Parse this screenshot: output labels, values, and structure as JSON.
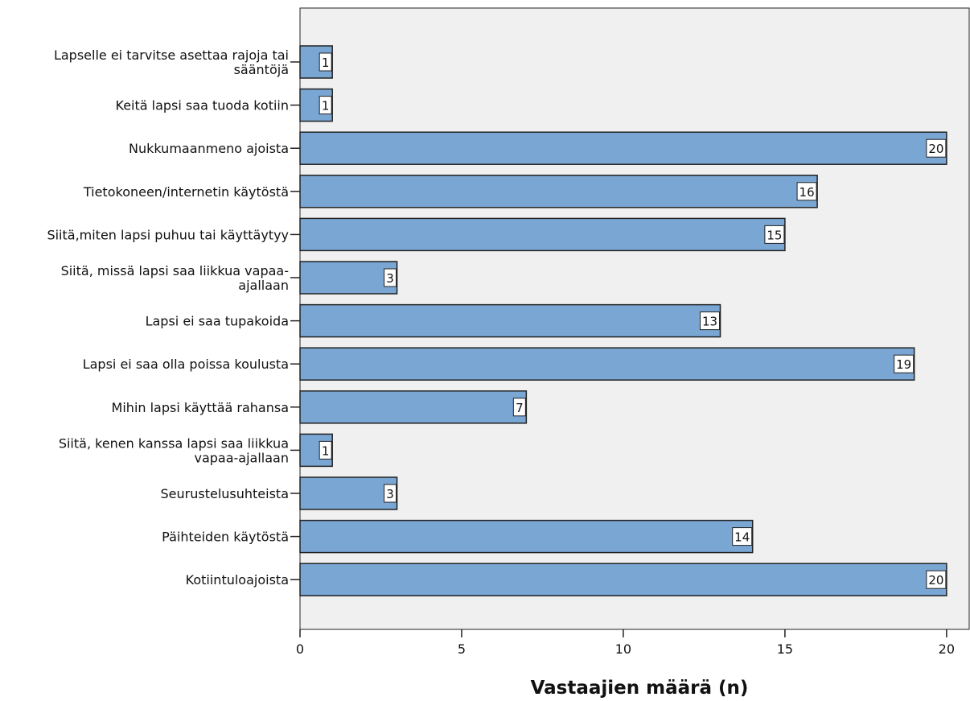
{
  "chart_data": {
    "type": "bar",
    "orientation": "horizontal",
    "categories": [
      "Lapselle ei tarvitse asettaa rajoja tai sääntöjä",
      "Keitä lapsi saa tuoda kotiin",
      "Nukkumaanmeno ajoista",
      "Tietokoneen/internetin käytöstä",
      "Siitä,miten lapsi puhuu tai käyttäytyy",
      "Siitä, missä lapsi saa liikkua vapaa-ajallaan",
      "Lapsi ei saa tupakoida",
      "Lapsi ei saa olla poissa koulusta",
      "Mihin lapsi käyttää rahansa",
      "Siitä, kenen kanssa lapsi saa liikkua vapaa-ajallaan",
      "Seurustelusuhteista",
      "Päihteiden käytöstä",
      "Kotiintuloajoista"
    ],
    "category_label_lines": [
      [
        "Lapselle ei tarvitse asettaa rajoja tai",
        "sääntöjä"
      ],
      [
        "Keitä lapsi saa tuoda kotiin"
      ],
      [
        "Nukkumaanmeno ajoista"
      ],
      [
        "Tietokoneen/internetin käytöstä"
      ],
      [
        "Siitä,miten lapsi puhuu tai käyttäytyy"
      ],
      [
        "Siitä, missä lapsi saa liikkua vapaa-",
        "ajallaan"
      ],
      [
        "Lapsi ei saa tupakoida"
      ],
      [
        "Lapsi ei saa olla poissa koulusta"
      ],
      [
        "Mihin lapsi käyttää rahansa"
      ],
      [
        "Siitä, kenen kanssa lapsi saa liikkua",
        "vapaa-ajallaan"
      ],
      [
        "Seurustelusuhteista"
      ],
      [
        "Päihteiden käytöstä"
      ],
      [
        "Kotiintuloajoista"
      ]
    ],
    "values": [
      1,
      1,
      20,
      16,
      15,
      3,
      13,
      19,
      7,
      1,
      3,
      14,
      20
    ],
    "data_labels": [
      "1",
      "1",
      "20",
      "16",
      "15",
      "3",
      "13",
      "19",
      "7",
      "1",
      "3",
      "14",
      "20"
    ],
    "title": "",
    "xlabel": "Vastaajien määrä (n)",
    "ylabel": "",
    "xlim": [
      0,
      20.7
    ],
    "xticks": [
      0,
      5,
      10,
      15,
      20
    ],
    "xtick_labels": [
      "0",
      "5",
      "10",
      "15",
      "20"
    ],
    "grid": false,
    "legend": "none",
    "colors": {
      "bar_fill": "#7aa6d4",
      "bar_stroke": "#222222",
      "plot_background": "#f0f0f0",
      "axis": "#222222"
    }
  }
}
